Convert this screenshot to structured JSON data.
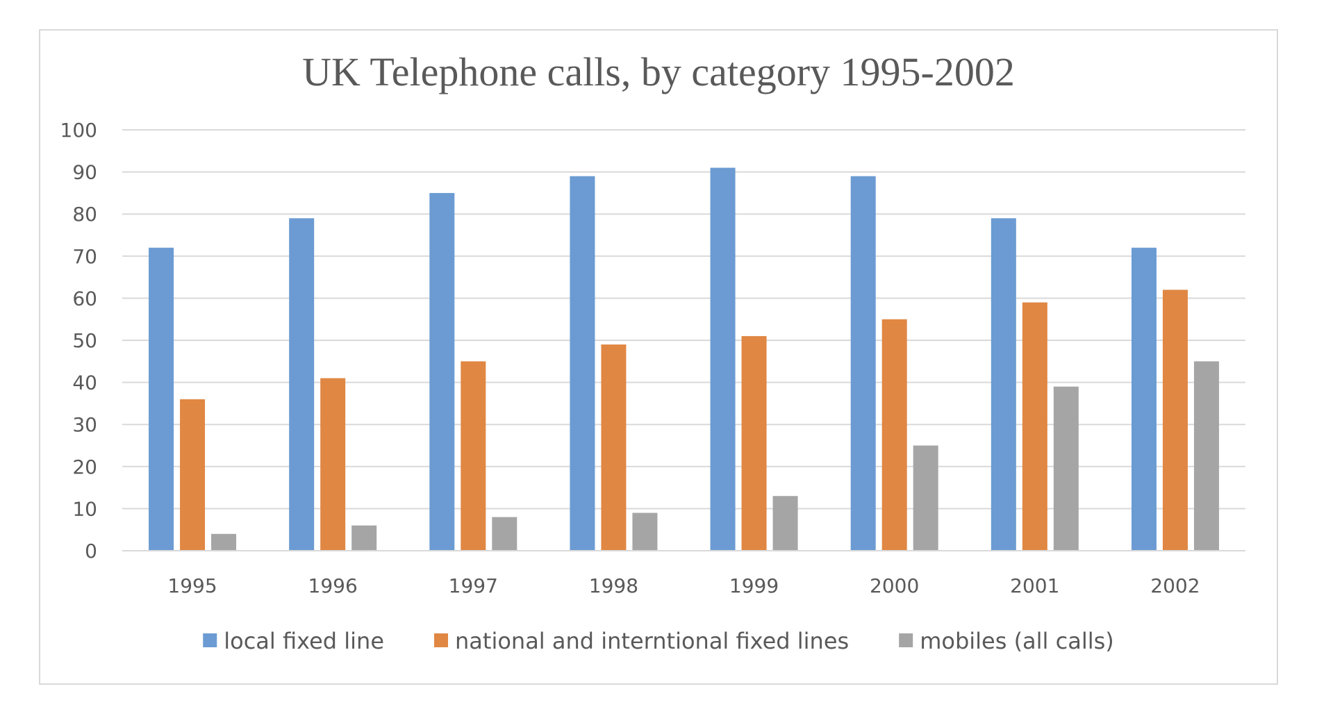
{
  "chart_data": {
    "type": "bar",
    "title": "UK Telephone calls, by category 1995-2002",
    "xlabel": "",
    "ylabel": "",
    "categories": [
      "1995",
      "1996",
      "1997",
      "1998",
      "1999",
      "2000",
      "2001",
      "2002"
    ],
    "ylim": [
      0,
      100
    ],
    "yticks": [
      0,
      10,
      20,
      30,
      40,
      50,
      60,
      70,
      80,
      90,
      100
    ],
    "grid": true,
    "legend_position": "bottom",
    "series": [
      {
        "name": "local fixed line",
        "color": "#6b9bd2",
        "values": [
          72,
          79,
          85,
          89,
          91,
          89,
          79,
          72
        ]
      },
      {
        "name": "national and interntional fixed lines",
        "color": "#e08743",
        "values": [
          36,
          41,
          45,
          49,
          51,
          55,
          59,
          62
        ]
      },
      {
        "name": "mobiles (all calls)",
        "color": "#a5a5a5",
        "values": [
          4,
          6,
          8,
          9,
          13,
          25,
          39,
          45
        ]
      }
    ]
  }
}
